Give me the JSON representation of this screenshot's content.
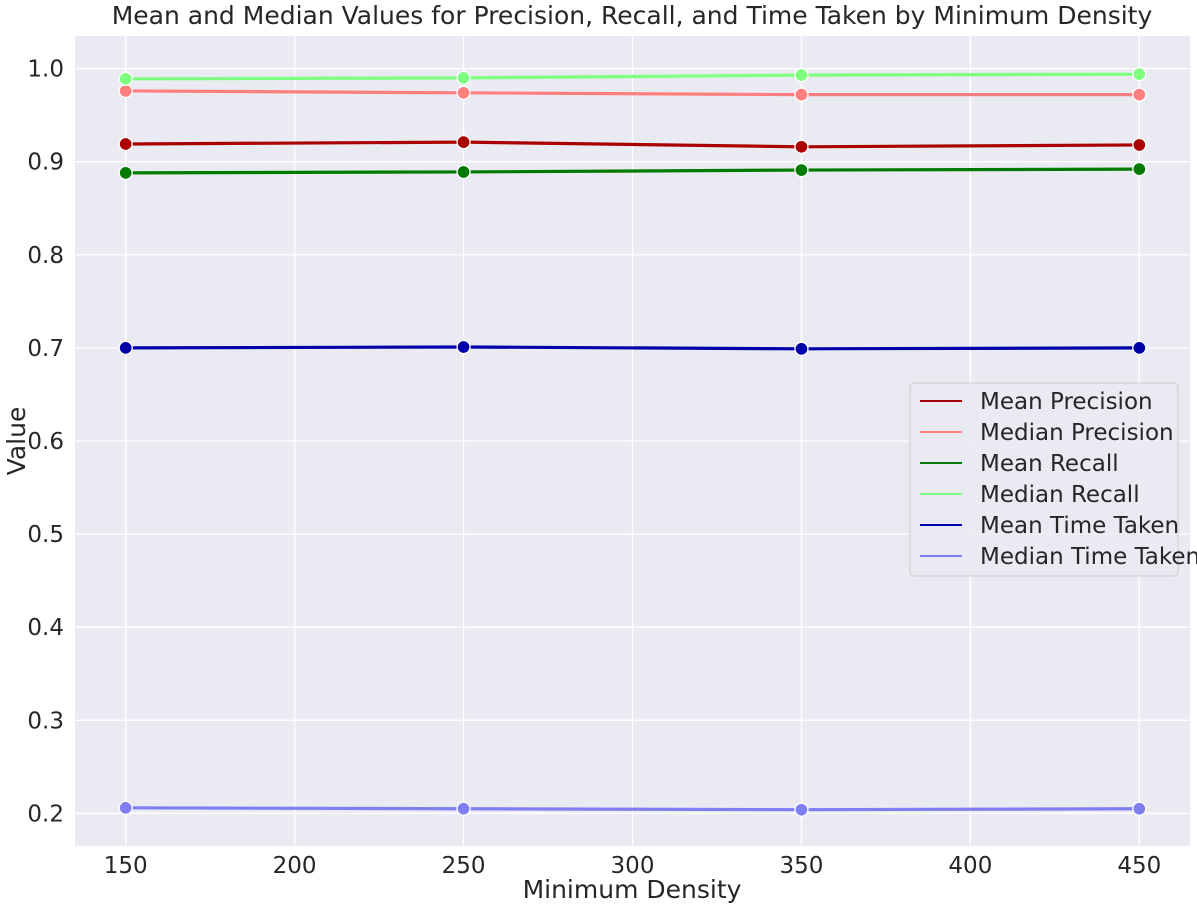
{
  "chart_data": {
    "type": "line",
    "title": "Mean and Median Values for Precision, Recall, and Time Taken by Minimum Density",
    "xlabel": "Minimum Density",
    "ylabel": "Value",
    "x": [
      150,
      250,
      350,
      450
    ],
    "xlim": [
      135,
      465
    ],
    "ylim": [
      0.165,
      1.035
    ],
    "xticks": [
      150,
      200,
      250,
      300,
      350,
      400,
      450
    ],
    "yticks": [
      0.2,
      0.3,
      0.4,
      0.5,
      0.6,
      0.7,
      0.8,
      0.9,
      1.0
    ],
    "grid": true,
    "legend_position": "center-right",
    "series": [
      {
        "name": "Mean Precision",
        "color": "#aa0000",
        "values": [
          0.919,
          0.921,
          0.916,
          0.918
        ]
      },
      {
        "name": "Median Precision",
        "color": "#ff7f7f",
        "values": [
          0.976,
          0.974,
          0.972,
          0.972
        ]
      },
      {
        "name": "Mean Recall",
        "color": "#007a00",
        "values": [
          0.888,
          0.889,
          0.891,
          0.892
        ]
      },
      {
        "name": "Median Recall",
        "color": "#7fff7f",
        "values": [
          0.989,
          0.99,
          0.993,
          0.994
        ]
      },
      {
        "name": "Mean Time Taken",
        "color": "#0000aa",
        "values": [
          0.7,
          0.701,
          0.699,
          0.7
        ]
      },
      {
        "name": "Median Time Taken",
        "color": "#7f7ff2",
        "values": [
          0.206,
          0.205,
          0.204,
          0.205
        ]
      }
    ]
  }
}
